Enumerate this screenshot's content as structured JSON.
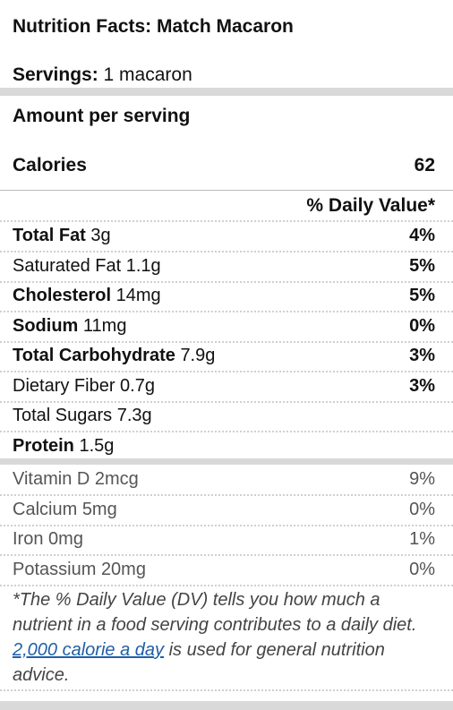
{
  "title": "Nutrition Facts: Match Macaron",
  "servings": {
    "label": "Servings:",
    "value": "1 macaron"
  },
  "amount_label": "Amount per serving",
  "calories": {
    "label": "Calories",
    "value": "62"
  },
  "daily_value_header": "% Daily Value*",
  "nutrients": [
    {
      "name": "Total Fat",
      "amount": "3g",
      "bold": true,
      "dv": "4%"
    },
    {
      "name": "Saturated Fat",
      "amount": "1.1g",
      "bold": false,
      "dv": "5%"
    },
    {
      "name": "Cholesterol",
      "amount": "14mg",
      "bold": true,
      "dv": "5%"
    },
    {
      "name": "Sodium",
      "amount": "11mg",
      "bold": true,
      "dv": "0%"
    },
    {
      "name": "Total Carbohydrate",
      "amount": "7.9g",
      "bold": true,
      "dv": "3%"
    },
    {
      "name": "Dietary Fiber",
      "amount": "0.7g",
      "bold": false,
      "dv": "3%"
    },
    {
      "name": "Total Sugars",
      "amount": "7.3g",
      "bold": false,
      "dv": ""
    },
    {
      "name": "Protein",
      "amount": "1.5g",
      "bold": true,
      "dv": ""
    }
  ],
  "vitamins": [
    {
      "name": "Vitamin D",
      "amount": "2mcg",
      "dv": "9%"
    },
    {
      "name": "Calcium",
      "amount": "5mg",
      "dv": "0%"
    },
    {
      "name": "Iron",
      "amount": "0mg",
      "dv": "1%"
    },
    {
      "name": "Potassium",
      "amount": "20mg",
      "dv": "0%"
    }
  ],
  "footnote": {
    "before": "*The % Daily Value (DV) tells you how much a nutrient in a food serving contributes to a daily diet. ",
    "link": "2,000 calorie a day",
    "after": " is used for general nutrition advice."
  },
  "colors": {
    "bar": "#d9d9d9",
    "link": "#1f5fa8",
    "text": "#111111"
  }
}
